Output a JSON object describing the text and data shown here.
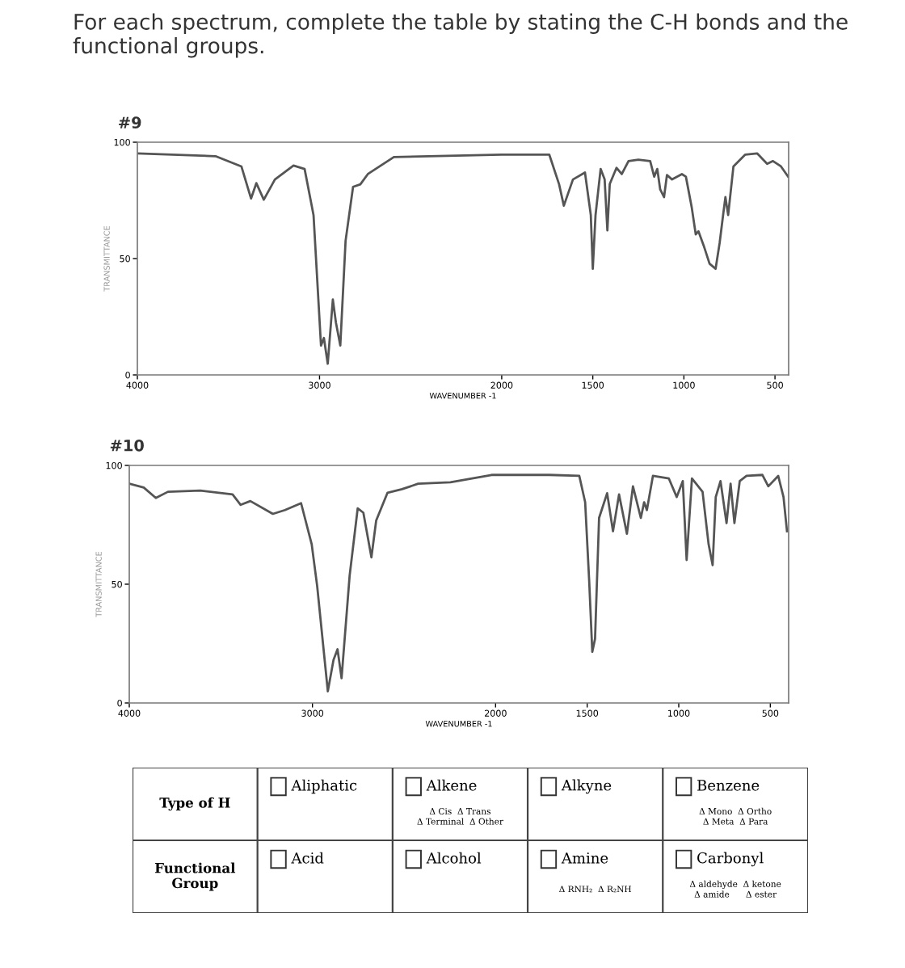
{
  "chart_data": [
    {
      "type": "line",
      "title": "For each spectrum, complete the table by stating the C-H bonds and the functional groups.",
      "subtitle": "#9",
      "xlabel": "WAVENUMBER -1",
      "ylabel": "TRANSMITTANCE",
      "x": [
        4000,
        3571,
        3429,
        3376,
        3347,
        3306,
        3245,
        3143,
        3082,
        3033,
        2992,
        2976,
        2955,
        2927,
        2910,
        2886,
        2857,
        2816,
        2776,
        2735,
        2592,
        2000,
        1739,
        1685,
        1659,
        1609,
        1543,
        1511,
        1500,
        1485,
        1457,
        1435,
        1420,
        1407,
        1370,
        1341,
        1304,
        1250,
        1185,
        1163,
        1146,
        1130,
        1109,
        1093,
        1065,
        1011,
        989,
        957,
        935,
        920,
        891,
        859,
        826,
        804,
        783,
        772,
        757,
        728,
        663,
        598,
        543,
        511,
        467,
        428
      ],
      "series": [
        {
          "color": "#555555",
          "values": [
            95.2,
            94,
            89.6,
            75.8,
            82.4,
            75.3,
            84,
            90,
            88.5,
            68.7,
            12.6,
            15.9,
            4.8,
            32.4,
            22.5,
            12.6,
            57.7,
            80.8,
            81.9,
            86.3,
            93.6,
            94.7,
            94.7,
            81.9,
            72.7,
            84,
            87,
            68.7,
            45.6,
            68.7,
            88.5,
            84,
            62.1,
            82,
            89,
            86.3,
            91.9,
            92.5,
            91.9,
            85.2,
            88.5,
            79.7,
            76.4,
            85.9,
            84,
            86.3,
            85.2,
            72,
            60.4,
            61.7,
            55.5,
            47.8,
            45.6,
            56.6,
            69.8,
            76.4,
            68.7,
            89.6,
            94.7,
            95.2,
            90.7,
            91.9,
            89.6,
            85.2
          ]
        }
      ],
      "xlim": [
        4000,
        425
      ],
      "xticks": [
        4000,
        3000,
        2000,
        1500,
        1000,
        500
      ],
      "ylim": [
        0,
        100
      ],
      "yticks": [
        0,
        50,
        100
      ]
    },
    {
      "type": "line",
      "title": "#10",
      "xlabel": "WAVENUMBER -1",
      "ylabel": "TRANSMITTANCE",
      "x": [
        4000,
        3921,
        3855,
        3789,
        3612,
        3436,
        3392,
        3339,
        3216,
        3150,
        3062,
        3004,
        2974,
        2916,
        2885,
        2863,
        2841,
        2797,
        2753,
        2722,
        2678,
        2652,
        2590,
        2511,
        2423,
        2247,
        2022,
        1707,
        1543,
        1511,
        1489,
        1472,
        1457,
        1435,
        1391,
        1359,
        1326,
        1283,
        1250,
        1207,
        1189,
        1174,
        1141,
        1054,
        1011,
        978,
        957,
        928,
        870,
        837,
        815,
        798,
        772,
        739,
        717,
        696,
        667,
        630,
        543,
        511,
        457,
        428,
        409
      ],
      "series": [
        {
          "color": "#555555",
          "values": [
            92.3,
            90.7,
            86.3,
            88.9,
            89.4,
            87.8,
            83.4,
            85,
            79.6,
            81.2,
            84.1,
            66.8,
            49.1,
            4.9,
            18.1,
            22.6,
            10.4,
            53.5,
            81.9,
            80.1,
            61.3,
            76.8,
            88.5,
            90,
            92.3,
            92.9,
            96,
            96,
            95.6,
            84.5,
            51.3,
            21.5,
            27,
            77.9,
            88.3,
            72.3,
            87.8,
            71.2,
            91.2,
            77.9,
            84.5,
            81.2,
            95.6,
            94.5,
            86.7,
            93.4,
            60.2,
            94.5,
            88.9,
            66.8,
            58,
            86.7,
            93.4,
            75.7,
            92.3,
            75.7,
            93.4,
            95.6,
            96,
            91.2,
            95.6,
            86.7,
            72.3
          ]
        }
      ],
      "xlim": [
        4000,
        400
      ],
      "xticks": [
        4000,
        3000,
        2000,
        1500,
        1000,
        500
      ],
      "ylim": [
        0,
        100
      ],
      "yticks": [
        0,
        50,
        100
      ]
    },
    {
      "type": "other",
      "annotations": [
        "Type of H",
        "Aliphatic",
        "Alkene",
        "Δ Cis  Δ Trans\nΔ Terminal  Δ Other",
        "Alkyne",
        "Benzene",
        "Δ Mono  Δ Ortho\nΔ Meta  Δ Para",
        "Functional\nGroup",
        "Acid",
        "Alcohol",
        "Amine",
        "Δ RNH₂  Δ R₂NH",
        "Carbonyl",
        "Δ aldehyde  Δ ketone\nΔ amide      Δ ester"
      ]
    }
  ]
}
